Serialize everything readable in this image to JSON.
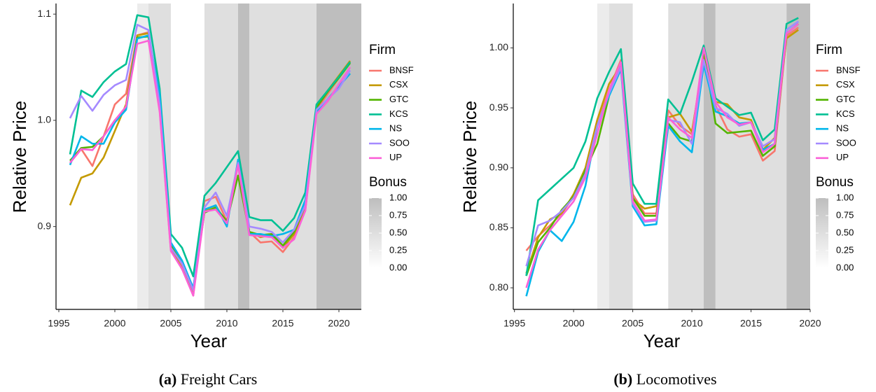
{
  "chart_data": [
    {
      "type": "line",
      "caption_label": "(a)",
      "caption": "Freight Cars",
      "x_label": "Year",
      "y_label": "Relative Price",
      "legend_title": "Firm",
      "bonus_title": "Bonus",
      "bonus_ticks": [
        {
          "value": 1,
          "label": "1.00"
        },
        {
          "value": 0.75,
          "label": "0.75"
        },
        {
          "value": 0.5,
          "label": "0.50"
        },
        {
          "value": 0.25,
          "label": "0.25"
        },
        {
          "value": 0,
          "label": "0.00"
        }
      ],
      "bonus": [
        {
          "start": 2002,
          "end": 2003,
          "value": 0.3
        },
        {
          "start": 2003,
          "end": 2005,
          "value": 0.5
        },
        {
          "start": 2008,
          "end": 2011,
          "value": 0.5
        },
        {
          "start": 2011,
          "end": 2012,
          "value": 1
        },
        {
          "start": 2012,
          "end": 2018,
          "value": 0.5
        },
        {
          "start": 2018,
          "end": 2022,
          "value": 1
        }
      ],
      "x": [
        1996,
        1997,
        1998,
        1999,
        2000,
        2001,
        2002,
        2003,
        2004,
        2005,
        2006,
        2007,
        2008,
        2009,
        2010,
        2011,
        2012,
        2013,
        2014,
        2015,
        2016,
        2017,
        2018,
        2019,
        2020,
        2021
      ],
      "xlim": [
        1994.75,
        2022
      ],
      "xticks": [
        1995,
        2000,
        2005,
        2010,
        2015,
        2020
      ],
      "ylim": [
        0.822,
        1.11
      ],
      "yticks": [
        0.9,
        {
          "value": 1,
          "label": "1.0"
        },
        1.1
      ],
      "series": [
        {
          "name": "BNSF",
          "color": "#F8766D",
          "values": [
            0.96,
            0.973,
            0.957,
            0.985,
            1.015,
            1.025,
            1.08,
            1.083,
            1.01,
            0.878,
            0.862,
            0.835,
            0.924,
            0.928,
            0.905,
            0.962,
            0.895,
            0.885,
            0.886,
            0.876,
            0.89,
            0.915,
            1.01,
            1.025,
            1.04,
            1.055
          ]
        },
        {
          "name": "CSX",
          "color": "#C49A00",
          "values": [
            0.92,
            0.946,
            0.95,
            0.965,
            0.99,
            1.015,
            1.08,
            1.082,
            1.012,
            0.88,
            0.86,
            0.838,
            0.915,
            0.92,
            0.902,
            0.96,
            0.895,
            0.89,
            0.892,
            0.88,
            0.893,
            0.918,
            1.012,
            1.028,
            1.042,
            1.056
          ]
        },
        {
          "name": "GTC",
          "color": "#53B400",
          "values": [
            0.962,
            0.974,
            0.975,
            0.985,
            1.0,
            1.012,
            1.078,
            1.079,
            1.012,
            0.882,
            0.865,
            0.842,
            0.913,
            0.918,
            0.905,
            0.948,
            0.895,
            0.892,
            0.893,
            0.882,
            0.895,
            0.92,
            1.012,
            1.027,
            1.04,
            1.054
          ]
        },
        {
          "name": "KCS",
          "color": "#00C094",
          "values": [
            0.968,
            1.028,
            1.022,
            1.036,
            1.046,
            1.053,
            1.099,
            1.097,
            1.03,
            0.893,
            0.88,
            0.853,
            0.929,
            0.941,
            0.956,
            0.971,
            0.909,
            0.906,
            0.906,
            0.896,
            0.908,
            0.932,
            1.015,
            1.028,
            1.041,
            1.055
          ]
        },
        {
          "name": "NS",
          "color": "#00B6EB",
          "values": [
            0.958,
            0.985,
            0.978,
            0.978,
            0.998,
            1.01,
            1.077,
            1.08,
            1.025,
            0.885,
            0.868,
            0.842,
            0.916,
            0.92,
            0.9,
            0.963,
            0.893,
            0.893,
            0.891,
            0.893,
            0.897,
            0.925,
            1.008,
            1.02,
            1.032,
            1.044
          ]
        },
        {
          "name": "SOO",
          "color": "#A58AFF",
          "values": [
            1.002,
            1.023,
            1.009,
            1.024,
            1.033,
            1.038,
            1.09,
            1.085,
            1.015,
            0.88,
            0.865,
            0.84,
            0.918,
            0.932,
            0.91,
            0.96,
            0.9,
            0.898,
            0.895,
            0.885,
            0.897,
            0.92,
            1.01,
            1.02,
            1.03,
            1.047
          ]
        },
        {
          "name": "UP",
          "color": "#FB61D7",
          "values": [
            0.96,
            0.973,
            0.972,
            0.985,
            1.0,
            1.013,
            1.072,
            1.075,
            1.008,
            0.877,
            0.86,
            0.835,
            0.914,
            0.916,
            0.903,
            0.958,
            0.892,
            0.891,
            0.89,
            0.88,
            0.888,
            0.915,
            1.006,
            1.018,
            1.034,
            1.05
          ]
        }
      ]
    },
    {
      "type": "line",
      "caption_label": "(b)",
      "caption": "Locomotives",
      "x_label": "Year",
      "y_label": "Relative Price",
      "legend_title": "Firm",
      "bonus_title": "Bonus",
      "bonus_ticks": [
        {
          "value": 1,
          "label": "1.00"
        },
        {
          "value": 0.75,
          "label": "0.75"
        },
        {
          "value": 0.5,
          "label": "0.50"
        },
        {
          "value": 0.25,
          "label": "0.25"
        },
        {
          "value": 0,
          "label": "0.00"
        }
      ],
      "bonus": [
        {
          "start": 2002,
          "end": 2003,
          "value": 0.3
        },
        {
          "start": 2003,
          "end": 2005,
          "value": 0.5
        },
        {
          "start": 2008,
          "end": 2011,
          "value": 0.5
        },
        {
          "start": 2011,
          "end": 2012,
          "value": 1
        },
        {
          "start": 2012,
          "end": 2018,
          "value": 0.5
        },
        {
          "start": 2018,
          "end": 2020,
          "value": 1
        }
      ],
      "x": [
        1996,
        1997,
        1998,
        1999,
        2000,
        2001,
        2002,
        2003,
        2004,
        2005,
        2006,
        2007,
        2008,
        2009,
        2010,
        2011,
        2012,
        2013,
        2014,
        2015,
        2016,
        2017,
        2018,
        2019
      ],
      "xlim": [
        1994.9,
        2020
      ],
      "xticks": [
        1995,
        2000,
        2005,
        2010,
        2015,
        2020
      ],
      "ylim": [
        0.782,
        1.037
      ],
      "yticks": [
        {
          "value": 0.8,
          "label": "0.80"
        },
        {
          "value": 0.85,
          "label": "0.85"
        },
        {
          "value": 0.9,
          "label": "0.90"
        },
        {
          "value": 0.95,
          "label": "0.95"
        },
        {
          "value": 1,
          "label": "1.00"
        }
      ],
      "series": [
        {
          "name": "BNSF",
          "color": "#F8766D",
          "values": [
            0.831,
            0.843,
            0.852,
            0.862,
            0.876,
            0.895,
            0.935,
            0.965,
            0.99,
            0.878,
            0.862,
            0.862,
            0.948,
            0.935,
            0.928,
            0.995,
            0.952,
            0.932,
            0.926,
            0.928,
            0.906,
            0.914,
            1.01,
            1.017
          ]
        },
        {
          "name": "CSX",
          "color": "#C49A00",
          "values": [
            0.812,
            0.842,
            0.857,
            0.862,
            0.878,
            0.9,
            0.94,
            0.97,
            0.985,
            0.874,
            0.866,
            0.868,
            0.942,
            0.945,
            0.93,
            0.99,
            0.955,
            0.953,
            0.942,
            0.94,
            0.915,
            0.925,
            1.008,
            1.015
          ]
        },
        {
          "name": "GTC",
          "color": "#53B400",
          "values": [
            0.81,
            0.838,
            0.85,
            0.865,
            0.876,
            0.898,
            0.92,
            0.96,
            0.985,
            0.875,
            0.86,
            0.86,
            0.937,
            0.925,
            0.922,
            0.998,
            0.937,
            0.929,
            0.93,
            0.931,
            0.91,
            0.918,
            1.012,
            1.02
          ]
        },
        {
          "name": "KCS",
          "color": "#00C094",
          "values": [
            0.81,
            0.873,
            0.882,
            0.891,
            0.9,
            0.922,
            0.958,
            0.98,
            0.999,
            0.887,
            0.87,
            0.87,
            0.957,
            0.945,
            0.972,
            1.002,
            0.958,
            0.951,
            0.944,
            0.946,
            0.923,
            0.932,
            1.02,
            1.025
          ]
        },
        {
          "name": "NS",
          "color": "#00B6EB",
          "values": [
            0.793,
            0.83,
            0.848,
            0.839,
            0.855,
            0.885,
            0.935,
            0.96,
            0.982,
            0.868,
            0.852,
            0.853,
            0.935,
            0.922,
            0.913,
            0.986,
            0.947,
            0.943,
            0.937,
            0.938,
            0.915,
            0.92,
            1.015,
            1.022
          ]
        },
        {
          "name": "SOO",
          "color": "#A58AFF",
          "values": [
            0.818,
            0.852,
            0.856,
            0.864,
            0.875,
            0.895,
            0.935,
            0.962,
            0.984,
            0.87,
            0.855,
            0.856,
            0.94,
            0.938,
            0.92,
            0.99,
            0.95,
            0.945,
            0.935,
            0.938,
            0.918,
            0.924,
            1.015,
            1.022
          ]
        },
        {
          "name": "UP",
          "color": "#FB61D7",
          "values": [
            0.8,
            0.832,
            0.848,
            0.86,
            0.872,
            0.892,
            0.928,
            0.965,
            0.988,
            0.872,
            0.856,
            0.857,
            0.942,
            0.932,
            0.925,
            1.0,
            0.955,
            0.942,
            0.936,
            0.938,
            0.913,
            0.92,
            1.012,
            1.02
          ]
        }
      ]
    }
  ]
}
